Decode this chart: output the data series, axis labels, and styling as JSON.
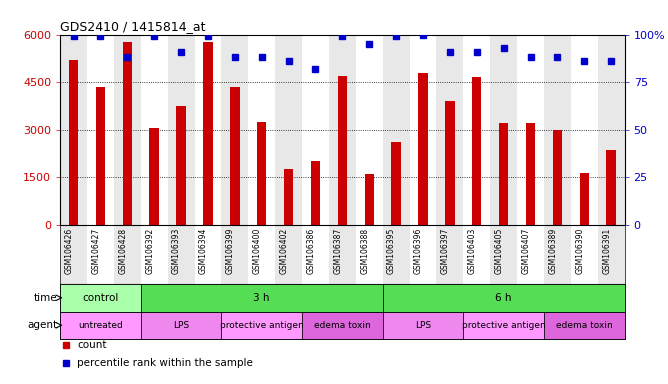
{
  "title": "GDS2410 / 1415814_at",
  "samples": [
    "GSM106426",
    "GSM106427",
    "GSM106428",
    "GSM106392",
    "GSM106393",
    "GSM106394",
    "GSM106399",
    "GSM106400",
    "GSM106402",
    "GSM106386",
    "GSM106387",
    "GSM106388",
    "GSM106395",
    "GSM106396",
    "GSM106397",
    "GSM106403",
    "GSM106405",
    "GSM106407",
    "GSM106389",
    "GSM106390",
    "GSM106391"
  ],
  "counts": [
    5200,
    4350,
    5750,
    3050,
    3750,
    5750,
    4350,
    3250,
    1750,
    2000,
    4700,
    1600,
    2600,
    4800,
    3900,
    4650,
    3200,
    3200,
    3000,
    1650,
    2350
  ],
  "percentile": [
    99,
    99,
    88,
    99,
    91,
    99,
    88,
    88,
    86,
    82,
    99,
    95,
    99,
    100,
    91,
    91,
    93,
    88,
    88,
    86,
    86
  ],
  "bar_color": "#cc0000",
  "dot_color": "#0000cc",
  "ylim_left": [
    0,
    6000
  ],
  "ylim_right": [
    0,
    100
  ],
  "yticks_left": [
    0,
    1500,
    3000,
    4500,
    6000
  ],
  "ytick_labels_left": [
    "0",
    "1500",
    "3000",
    "4500",
    "6000"
  ],
  "yticks_right": [
    0,
    25,
    50,
    75,
    100
  ],
  "ytick_labels_right": [
    "0",
    "25",
    "50",
    "75",
    "100%"
  ],
  "col_bg_colors": [
    "#e8e8e8",
    "#ffffff"
  ],
  "time_groups": [
    {
      "label": "control",
      "start": 0,
      "end": 3,
      "color": "#aaffaa"
    },
    {
      "label": "3 h",
      "start": 3,
      "end": 12,
      "color": "#55dd55"
    },
    {
      "label": "6 h",
      "start": 12,
      "end": 21,
      "color": "#55dd55"
    }
  ],
  "agent_groups": [
    {
      "label": "untreated",
      "start": 0,
      "end": 3,
      "color": "#ff99ff"
    },
    {
      "label": "LPS",
      "start": 3,
      "end": 6,
      "color": "#ee88ee"
    },
    {
      "label": "protective antigen",
      "start": 6,
      "end": 9,
      "color": "#ff99ff"
    },
    {
      "label": "edema toxin",
      "start": 9,
      "end": 12,
      "color": "#dd66dd"
    },
    {
      "label": "LPS",
      "start": 12,
      "end": 15,
      "color": "#ee88ee"
    },
    {
      "label": "protective antigen",
      "start": 15,
      "end": 18,
      "color": "#ff99ff"
    },
    {
      "label": "edema toxin",
      "start": 18,
      "end": 21,
      "color": "#dd66dd"
    }
  ]
}
